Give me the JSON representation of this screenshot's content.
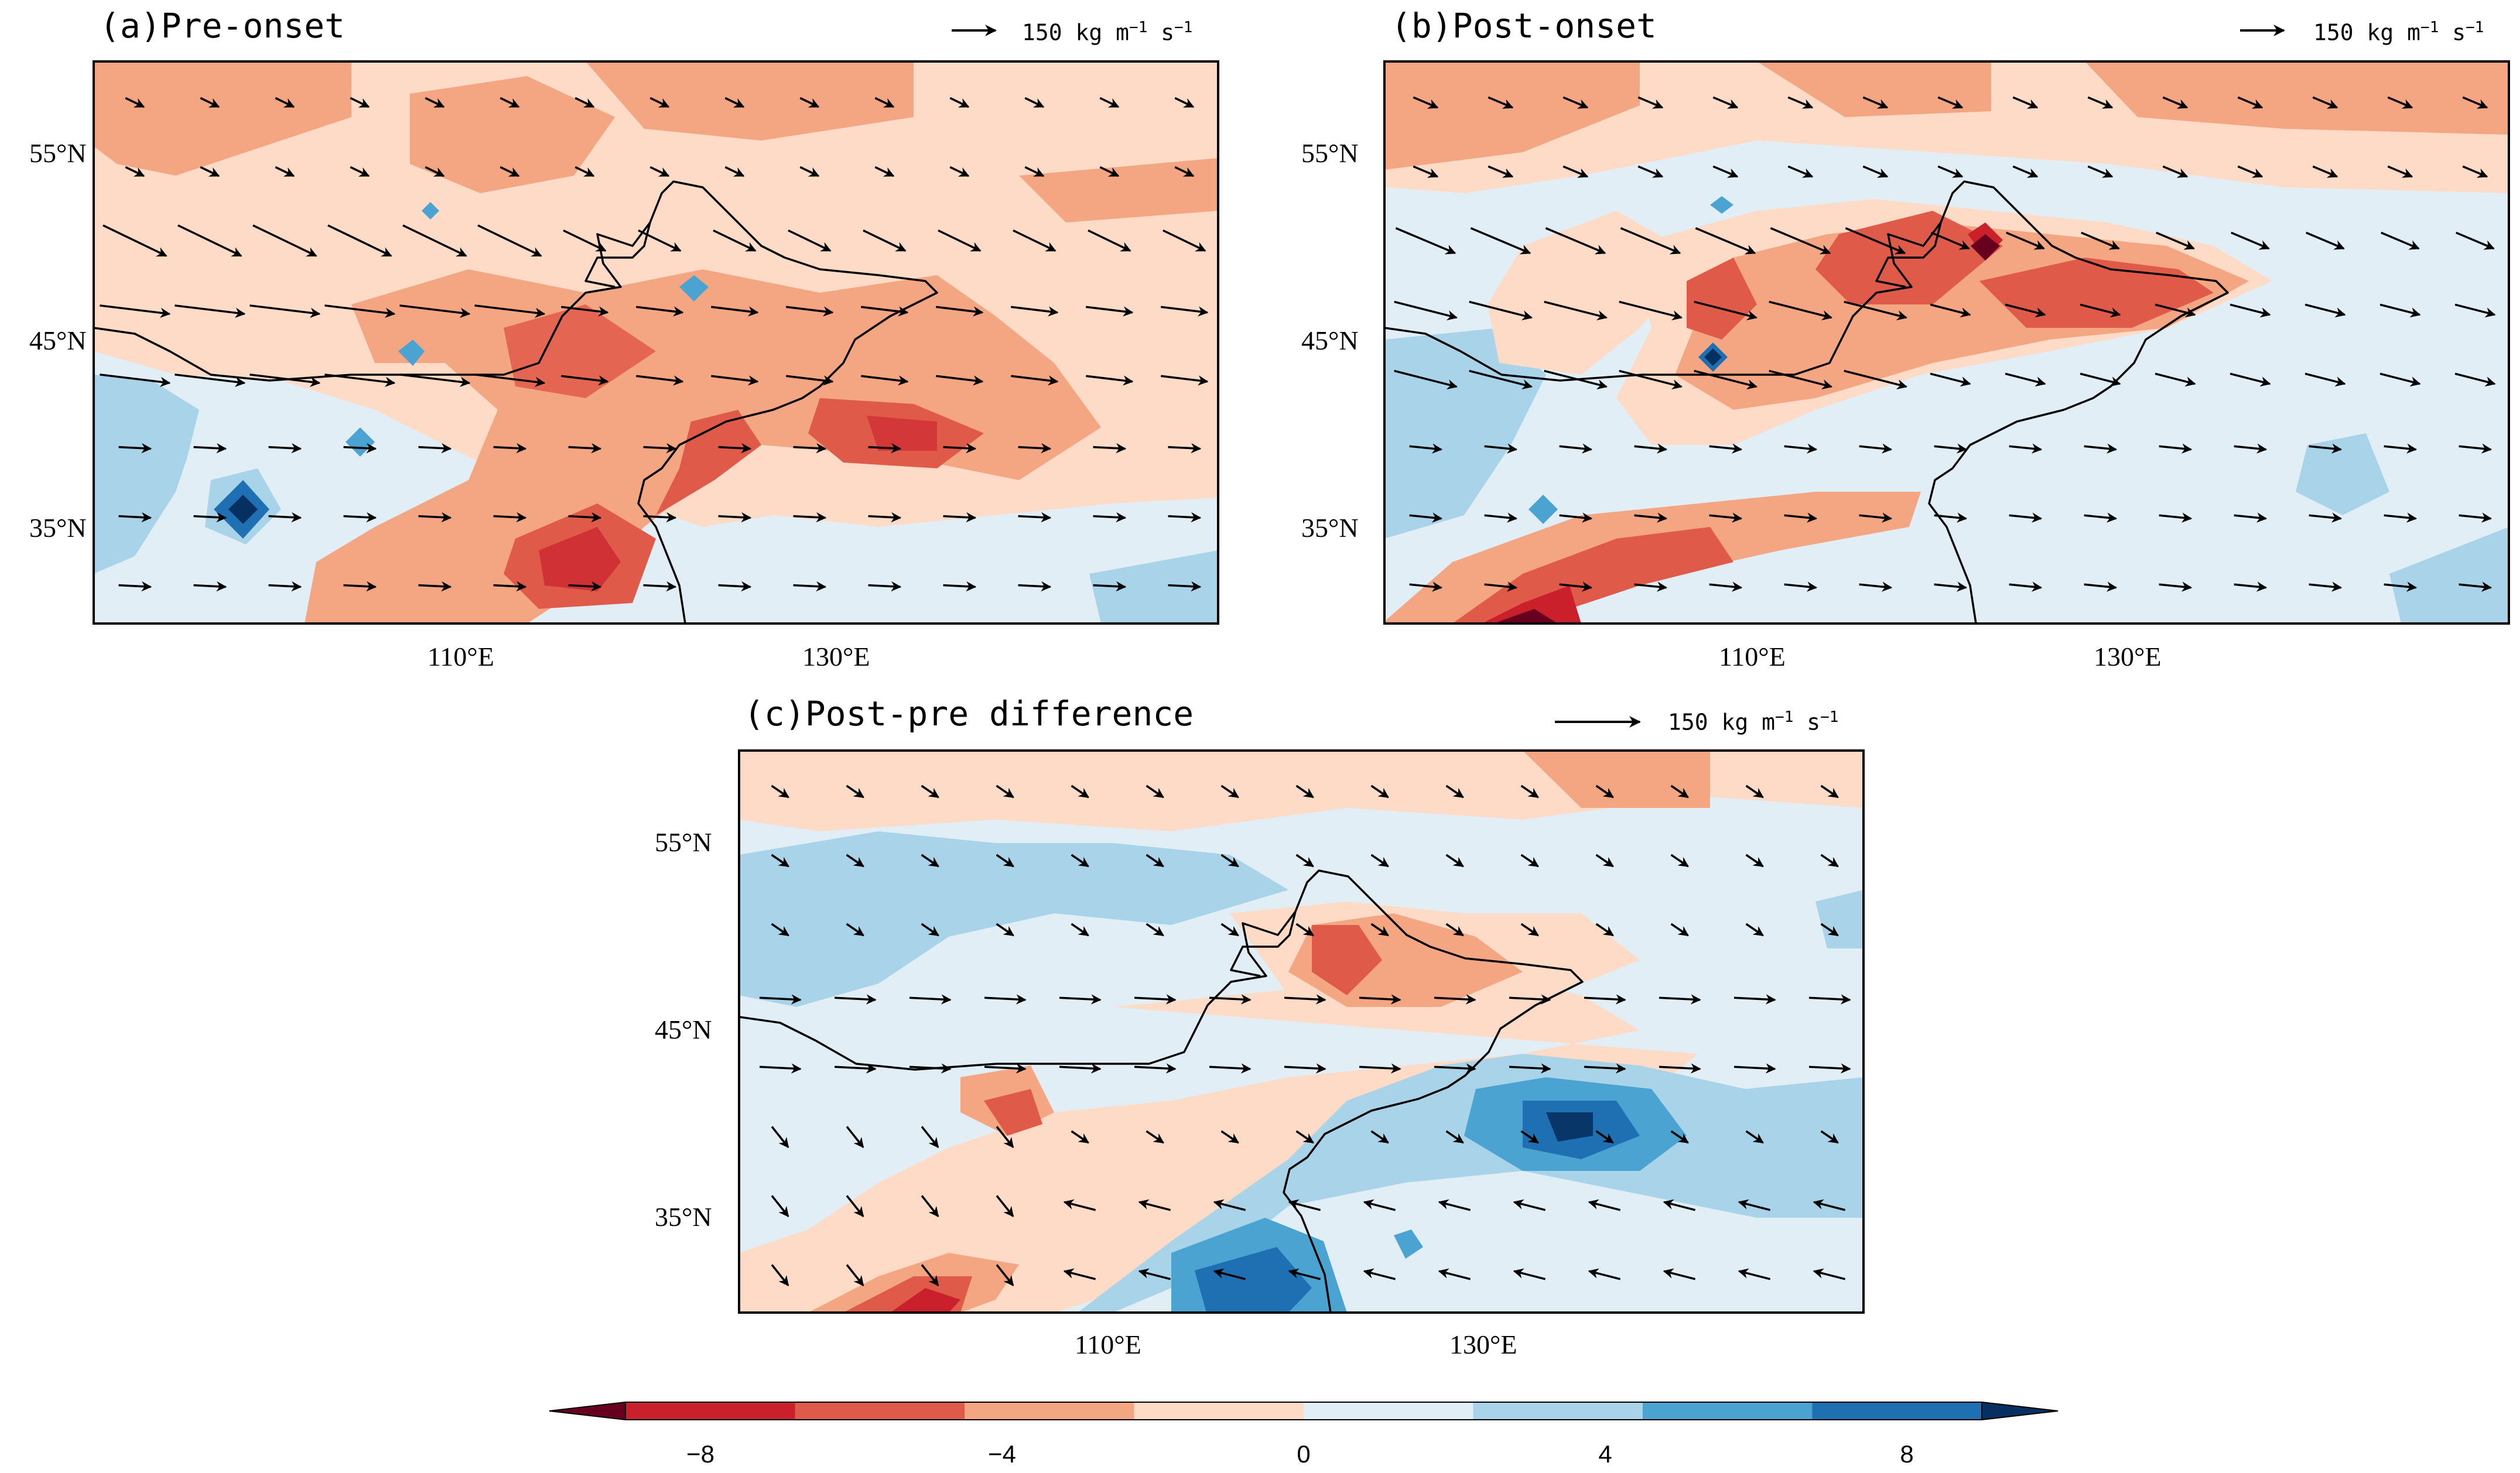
{
  "figure": {
    "panels": [
      {
        "id": "a",
        "label": "(a)",
        "title": "Pre-onset",
        "ref_vector": "150",
        "ref_unit": "kg m",
        "ref_exp1": "−1",
        "ref_s": " s",
        "ref_exp2": "−1"
      },
      {
        "id": "b",
        "label": "(b)",
        "title": "Post-onset",
        "ref_vector": "150",
        "ref_unit": "kg m",
        "ref_exp1": "−1",
        "ref_s": " s",
        "ref_exp2": "−1"
      },
      {
        "id": "c",
        "label": "(c)",
        "title": "Post-pre difference",
        "ref_vector": "150",
        "ref_unit": "kg m",
        "ref_exp1": "−1",
        "ref_s": " s",
        "ref_exp2": "−1"
      }
    ],
    "lat_ticks": [
      "55°N",
      "45°N",
      "35°N"
    ],
    "lon_ticks": [
      "110°E",
      "130°E"
    ]
  },
  "colorbar": {
    "labels": [
      "−8",
      "−4",
      "0",
      "4",
      "8"
    ],
    "levels": [
      -10,
      -8,
      -6,
      -4,
      -2,
      0,
      2,
      4,
      6,
      8,
      10
    ],
    "colors": [
      "#67001f",
      "#c9202b",
      "#e05a4a",
      "#f4a582",
      "#fddbc7",
      "#e1eef6",
      "#a8d3e8",
      "#4aa3d1",
      "#1f6fb3",
      "#053061"
    ]
  },
  "palette": {
    "red_strong": "#d6604d",
    "red_mid": "#f4a582",
    "red_light": "#fddbc7",
    "blue_light": "#e1eef6",
    "blue_mid": "#a8d3e8",
    "blue_strong": "#4aa3d1",
    "blue_dark": "#1f6fb3"
  }
}
